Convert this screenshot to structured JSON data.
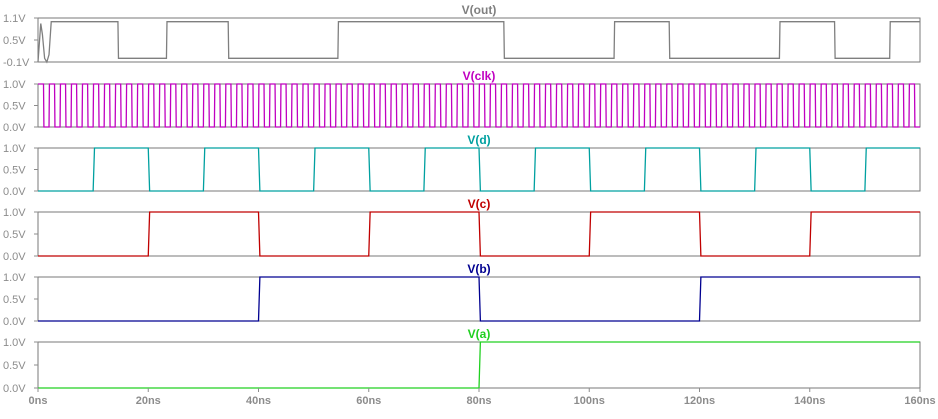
{
  "chart_data": {
    "type": "line",
    "x_unit": "ns",
    "x_range": [
      0,
      160
    ],
    "x_ticks": [
      0,
      20,
      40,
      60,
      80,
      100,
      120,
      140,
      160
    ],
    "x_tick_labels": [
      "0ns",
      "20ns",
      "40ns",
      "60ns",
      "80ns",
      "100ns",
      "120ns",
      "140ns",
      "160ns"
    ],
    "series": [
      {
        "name": "V(out)",
        "color": "#7f7f7f",
        "ylim": [
          -0.1,
          1.1
        ],
        "y_tick_labels": [
          "1.1V",
          "0.5V",
          "-0.1V"
        ],
        "y_tick_values": [
          1.1,
          0.5,
          -0.1
        ],
        "x": [
          0,
          0.5,
          0.8,
          1.2,
          1.6,
          2.0,
          2.4,
          3.2,
          14.5,
          14.6,
          23.3,
          23.4,
          34.5,
          34.6,
          54.4,
          54.5,
          84.5,
          84.6,
          94.5,
          94.6,
          104.5,
          104.6,
          114.5,
          114.6,
          124.5,
          124.6,
          134.5,
          134.6,
          144.5,
          144.6,
          154.5,
          154.6,
          160
        ],
        "y": [
          -0.1,
          0.95,
          0.65,
          0.0,
          -0.1,
          0.1,
          1.0,
          1.0,
          1.0,
          0.0,
          0.0,
          1.0,
          1.0,
          0.0,
          0.0,
          1.0,
          1.0,
          0.0,
          0.0,
          0.0,
          0.0,
          1.0,
          1.0,
          0.0,
          0.0,
          0.0,
          0.0,
          1.0,
          1.0,
          0.0,
          0.0,
          1.0,
          1.0
        ]
      },
      {
        "name": "V(clk)",
        "color": "#c000c0",
        "ylim": [
          0.0,
          1.0
        ],
        "y_tick_labels": [
          "1.0V",
          "0.5V",
          "0.0V"
        ],
        "y_tick_values": [
          1.0,
          0.5,
          0.0
        ],
        "period": 2,
        "levels": [
          1.0,
          0.0
        ]
      },
      {
        "name": "V(d)",
        "color": "#00a0a0",
        "ylim": [
          0.0,
          1.0
        ],
        "y_tick_labels": [
          "1.0V",
          "0.5V",
          "0.0V"
        ],
        "y_tick_values": [
          1.0,
          0.5,
          0.0
        ],
        "x": [
          0,
          10,
          20,
          30,
          40,
          50,
          60,
          70,
          80,
          90,
          100,
          110,
          120,
          130,
          140,
          150,
          160
        ],
        "y": [
          0,
          1,
          0,
          1,
          0,
          1,
          0,
          1,
          0,
          1,
          0,
          1,
          0,
          1,
          0,
          1,
          1
        ]
      },
      {
        "name": "V(c)",
        "color": "#c00000",
        "ylim": [
          0.0,
          1.0
        ],
        "y_tick_labels": [
          "1.0V",
          "0.5V",
          "0.0V"
        ],
        "y_tick_values": [
          1.0,
          0.5,
          0.0
        ],
        "x": [
          0,
          20,
          40,
          60,
          80,
          100,
          120,
          140,
          160
        ],
        "y": [
          0,
          1,
          0,
          1,
          0,
          1,
          0,
          1,
          1
        ]
      },
      {
        "name": "V(b)",
        "color": "#000090",
        "ylim": [
          0.0,
          1.0
        ],
        "y_tick_labels": [
          "1.0V",
          "0.5V",
          "0.0V"
        ],
        "y_tick_values": [
          1.0,
          0.5,
          0.0
        ],
        "x": [
          0,
          40,
          80,
          120,
          160
        ],
        "y": [
          0,
          1,
          0,
          1,
          1
        ]
      },
      {
        "name": "V(a)",
        "color": "#20d020",
        "ylim": [
          0.0,
          1.0
        ],
        "y_tick_labels": [
          "1.0V",
          "0.5V",
          "0.0V"
        ],
        "y_tick_values": [
          1.0,
          0.5,
          0.0
        ],
        "x": [
          0,
          80,
          160
        ],
        "y": [
          0,
          1,
          1
        ]
      }
    ]
  }
}
